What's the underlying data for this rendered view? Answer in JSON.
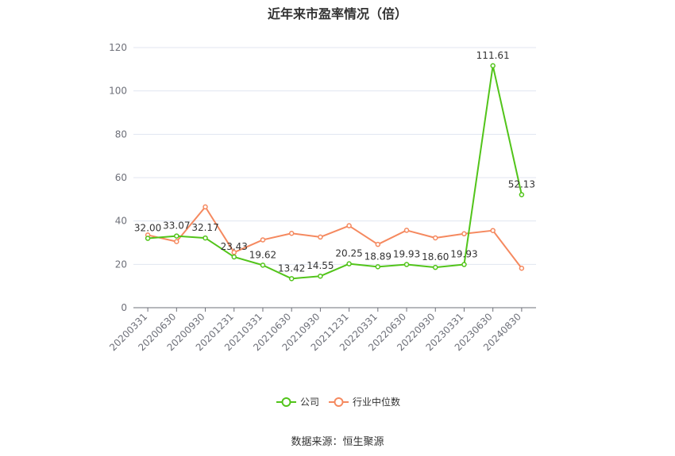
{
  "chart_data": {
    "type": "line",
    "title": "近年来市盈率情况（倍）",
    "categories": [
      "20200331",
      "20200630",
      "20200930",
      "20201231",
      "20210331",
      "20210630",
      "20210930",
      "20211231",
      "20220331",
      "20220630",
      "20220930",
      "20230331",
      "20230630",
      "20240830"
    ],
    "series": [
      {
        "name": "公司",
        "color": "#52c41a",
        "values": [
          32.0,
          33.07,
          32.17,
          23.43,
          19.62,
          13.42,
          14.55,
          20.25,
          18.89,
          19.93,
          18.6,
          19.93,
          111.61,
          52.13
        ],
        "labels": [
          "32.00",
          "33.07",
          "32.17",
          "23.43",
          "19.62",
          "13.42",
          "14.55",
          "20.25",
          "18.89",
          "19.93",
          "18.60",
          "19.93",
          "111.61",
          "52.13"
        ]
      },
      {
        "name": "行业中位数",
        "color": "#f5895f",
        "values": [
          33.5,
          30.5,
          46.5,
          25.5,
          31.3,
          34.3,
          32.6,
          37.8,
          29.2,
          35.7,
          32.2,
          34.1,
          35.6,
          18.2
        ]
      }
    ],
    "ylim": [
      0,
      120
    ],
    "yticks": [
      0,
      20,
      40,
      60,
      80,
      100,
      120
    ],
    "grid": true,
    "legend_position": "bottom"
  },
  "source": "数据来源：恒生聚源"
}
